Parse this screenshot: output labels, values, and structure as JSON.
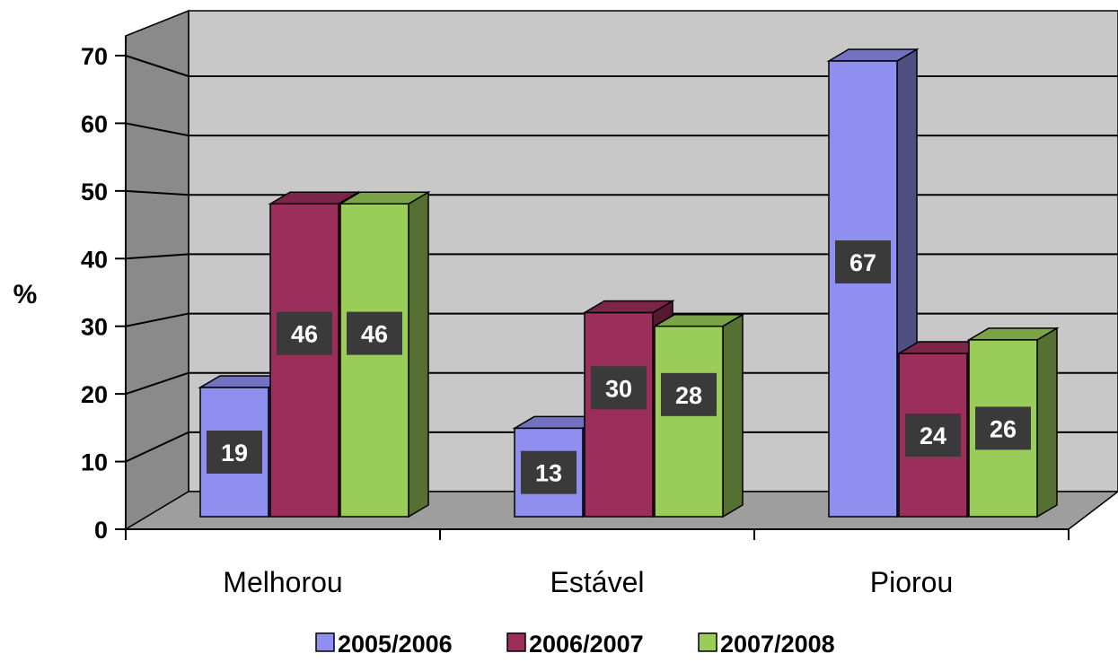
{
  "chart_data": {
    "type": "bar",
    "title": "",
    "xlabel": "",
    "ylabel": "%",
    "ylim": [
      0,
      70
    ],
    "yticks": [
      0,
      10,
      20,
      30,
      40,
      50,
      60,
      70
    ],
    "grid": true,
    "legend_position": "bottom",
    "categories": [
      "Melhorou",
      "Estável",
      "Piorou"
    ],
    "series": [
      {
        "name": "2005/2006",
        "values": [
          19,
          13,
          67
        ],
        "color": "#8f8ff0"
      },
      {
        "name": "2006/2007",
        "values": [
          46,
          30,
          24
        ],
        "color": "#9b2e5a"
      },
      {
        "name": "2007/2008",
        "values": [
          46,
          28,
          26
        ],
        "color": "#9acc5a"
      }
    ],
    "data_labels": [
      [
        "19",
        "13",
        "67"
      ],
      [
        "46",
        "30",
        "24"
      ],
      [
        "46",
        "28",
        "26"
      ]
    ],
    "colors": {
      "wall": "#c8c8c8",
      "side_wall": "#8a8a8a",
      "floor": "#9e9e9e",
      "label_box": "#3a3a3a"
    }
  }
}
